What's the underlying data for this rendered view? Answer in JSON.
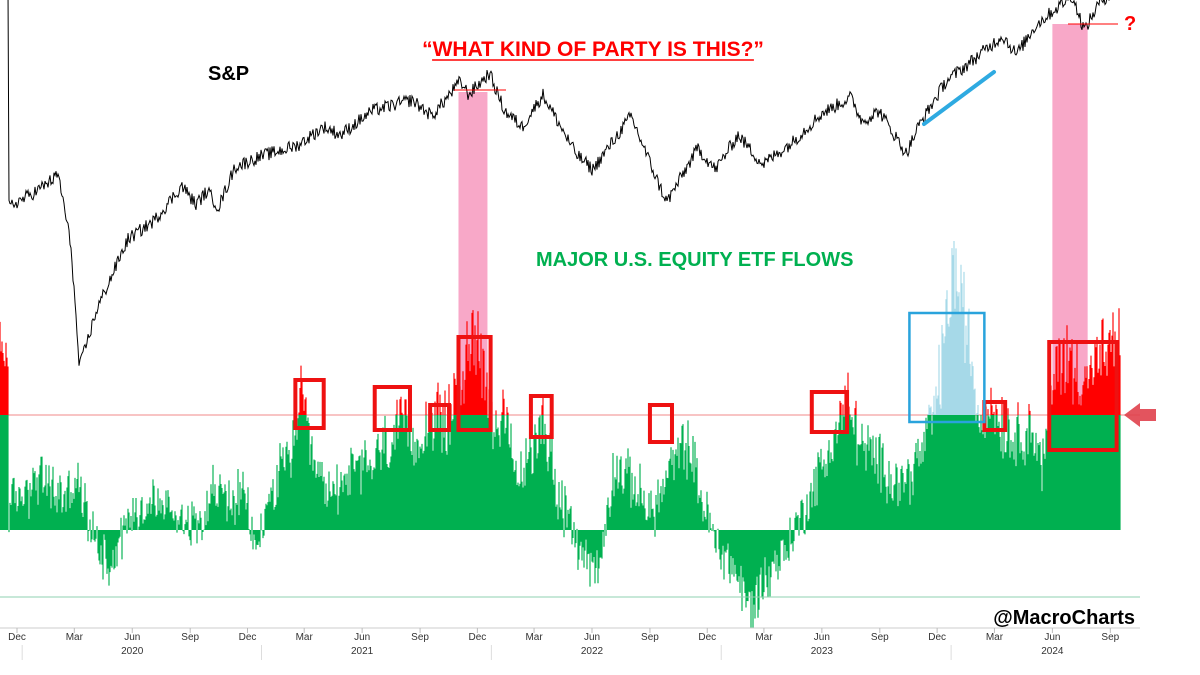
{
  "chart_data": {
    "type": "line",
    "title": "“WHAT KIND OF PARTY IS THIS?”",
    "question_mark": "?",
    "credit": "@MacroCharts",
    "colors": {
      "sp_line": "#000000",
      "flows_fill": "#00b050",
      "flows_above_threshold": "#ff0000",
      "flows_highlight": "#a6d9e8",
      "highlight_box": "#29a3dc",
      "marker_boxes": "#ee1111",
      "pink_bands": "#f8a8c8",
      "threshold_line": "#f4a0a0",
      "trend_line": "#2eaae1"
    },
    "x_axis": {
      "months": [
        {
          "label": "Dec",
          "date": "2019-12"
        },
        {
          "label": "Mar",
          "date": "2020-03"
        },
        {
          "label": "Jun",
          "date": "2020-06"
        },
        {
          "label": "Sep",
          "date": "2020-09"
        },
        {
          "label": "Dec",
          "date": "2020-12"
        },
        {
          "label": "Mar",
          "date": "2021-03"
        },
        {
          "label": "Jun",
          "date": "2021-06"
        },
        {
          "label": "Sep",
          "date": "2021-09"
        },
        {
          "label": "Dec",
          "date": "2021-12"
        },
        {
          "label": "Mar",
          "date": "2022-03"
        },
        {
          "label": "Jun",
          "date": "2022-06"
        },
        {
          "label": "Sep",
          "date": "2022-09"
        },
        {
          "label": "Dec",
          "date": "2022-12"
        },
        {
          "label": "Mar",
          "date": "2023-03"
        },
        {
          "label": "Jun",
          "date": "2023-06"
        },
        {
          "label": "Sep",
          "date": "2023-09"
        },
        {
          "label": "Dec",
          "date": "2023-12"
        },
        {
          "label": "Mar",
          "date": "2024-03"
        },
        {
          "label": "Jun",
          "date": "2024-06"
        },
        {
          "label": "Sep",
          "date": "2024-09"
        }
      ],
      "years": [
        {
          "label": "2020",
          "date": "2020-06"
        },
        {
          "label": "2021",
          "date": "2021-06"
        },
        {
          "label": "2022",
          "date": "2022-06"
        },
        {
          "label": "2023",
          "date": "2023-06"
        },
        {
          "label": "2024",
          "date": "2024-06"
        }
      ]
    },
    "series": [
      {
        "name": "S&P",
        "points": [
          [
            "2019-12-01",
            0.6
          ],
          [
            "2020-01-15",
            0.66
          ],
          [
            "2020-02-19",
            0.72
          ],
          [
            "2020-03-10",
            0.45
          ],
          [
            "2020-03-23",
            0.0
          ],
          [
            "2020-04-20",
            0.22
          ],
          [
            "2020-06-08",
            0.48
          ],
          [
            "2020-07-20",
            0.55
          ],
          [
            "2020-09-02",
            0.68
          ],
          [
            "2020-09-24",
            0.61
          ],
          [
            "2020-10-12",
            0.66
          ],
          [
            "2020-10-30",
            0.6
          ],
          [
            "2020-11-25",
            0.75
          ],
          [
            "2021-01-05",
            0.79
          ],
          [
            "2021-03-04",
            0.83
          ],
          [
            "2021-04-15",
            0.9
          ],
          [
            "2021-05-12",
            0.87
          ],
          [
            "2021-07-01",
            0.96
          ],
          [
            "2021-09-02",
            1.0
          ],
          [
            "2021-10-04",
            0.94
          ],
          [
            "2021-11-18",
            1.07
          ],
          [
            "2021-12-01",
            1.02
          ],
          [
            "2022-01-03",
            1.1
          ],
          [
            "2022-01-27",
            0.96
          ],
          [
            "2022-02-24",
            0.9
          ],
          [
            "2022-03-29",
            1.02
          ],
          [
            "2022-05-20",
            0.8
          ],
          [
            "2022-06-16",
            0.74
          ],
          [
            "2022-08-16",
            0.94
          ],
          [
            "2022-09-30",
            0.68
          ],
          [
            "2022-10-12",
            0.62
          ],
          [
            "2022-11-30",
            0.82
          ],
          [
            "2022-12-28",
            0.74
          ],
          [
            "2023-02-02",
            0.87
          ],
          [
            "2023-03-13",
            0.76
          ],
          [
            "2023-04-28",
            0.84
          ],
          [
            "2023-06-15",
            0.95
          ],
          [
            "2023-07-31",
            1.01
          ],
          [
            "2023-08-18",
            0.92
          ],
          [
            "2023-09-14",
            0.96
          ],
          [
            "2023-10-27",
            0.8
          ],
          [
            "2023-11-15",
            0.9
          ],
          [
            "2023-12-29",
            1.07
          ],
          [
            "2024-01-31",
            1.13
          ],
          [
            "2024-03-28",
            1.24
          ],
          [
            "2024-04-19",
            1.17
          ],
          [
            "2024-05-20",
            1.28
          ],
          [
            "2024-07-16",
            1.39
          ],
          [
            "2024-08-05",
            1.26
          ],
          [
            "2024-08-30",
            1.37
          ],
          [
            "2024-09-20",
            1.4
          ]
        ]
      },
      {
        "name": "MAJOR U.S. EQUITY ETF FLOWS",
        "points": [
          [
            "2019-12-01",
            0.2
          ],
          [
            "2020-01-20",
            0.45
          ],
          [
            "2020-02-25",
            0.28
          ],
          [
            "2020-03-20",
            0.4
          ],
          [
            "2020-04-15",
            -0.05
          ],
          [
            "2020-05-10",
            -0.3
          ],
          [
            "2020-06-10",
            0.12
          ],
          [
            "2020-07-20",
            0.25
          ],
          [
            "2020-08-25",
            0.15
          ],
          [
            "2020-09-25",
            0.05
          ],
          [
            "2020-10-20",
            0.35
          ],
          [
            "2020-11-20",
            0.25
          ],
          [
            "2020-12-10",
            0.3
          ],
          [
            "2020-12-28",
            -0.2
          ],
          [
            "2021-01-20",
            0.3
          ],
          [
            "2021-02-20",
            0.65
          ],
          [
            "2021-03-10",
            1.15
          ],
          [
            "2021-03-28",
            0.55
          ],
          [
            "2021-04-25",
            0.3
          ],
          [
            "2021-05-25",
            0.5
          ],
          [
            "2021-06-25",
            0.55
          ],
          [
            "2021-07-20",
            0.72
          ],
          [
            "2021-08-20",
            0.9
          ],
          [
            "2021-09-10",
            0.75
          ],
          [
            "2021-10-05",
            1.0
          ],
          [
            "2021-10-25",
            0.9
          ],
          [
            "2021-11-20",
            1.3
          ],
          [
            "2021-12-15",
            1.8
          ],
          [
            "2022-01-05",
            1.0
          ],
          [
            "2022-01-28",
            0.9
          ],
          [
            "2022-02-15",
            0.45
          ],
          [
            "2022-03-10",
            0.6
          ],
          [
            "2022-03-28",
            1.05
          ],
          [
            "2022-04-20",
            0.35
          ],
          [
            "2022-05-20",
            -0.1
          ],
          [
            "2022-06-10",
            -0.25
          ],
          [
            "2022-06-25",
            -0.4
          ],
          [
            "2022-07-20",
            0.55
          ],
          [
            "2022-08-20",
            0.4
          ],
          [
            "2022-09-20",
            0.15
          ],
          [
            "2022-10-20",
            0.55
          ],
          [
            "2022-11-15",
            0.75
          ],
          [
            "2022-12-05",
            0.3
          ],
          [
            "2022-12-28",
            -0.1
          ],
          [
            "2023-01-28",
            -0.35
          ],
          [
            "2023-02-20",
            -0.7
          ],
          [
            "2023-03-15",
            -0.45
          ],
          [
            "2023-04-20",
            -0.15
          ],
          [
            "2023-05-20",
            0.2
          ],
          [
            "2023-06-20",
            0.6
          ],
          [
            "2023-07-25",
            1.1
          ],
          [
            "2023-08-20",
            0.7
          ],
          [
            "2023-09-20",
            0.55
          ],
          [
            "2023-10-20",
            0.4
          ],
          [
            "2023-11-20",
            0.65
          ],
          [
            "2023-12-15",
            1.15
          ],
          [
            "2024-01-10",
            2.3
          ],
          [
            "2024-01-30",
            1.8
          ],
          [
            "2024-02-20",
            0.95
          ],
          [
            "2024-03-10",
            1.1
          ],
          [
            "2024-04-10",
            0.8
          ],
          [
            "2024-05-10",
            0.9
          ],
          [
            "2024-06-01",
            0.55
          ],
          [
            "2024-06-25",
            1.55
          ],
          [
            "2024-07-20",
            1.4
          ],
          [
            "2024-08-10",
            1.35
          ],
          [
            "2024-09-01",
            1.5
          ],
          [
            "2024-09-20",
            1.55
          ]
        ]
      }
    ],
    "flows_threshold": 1.0,
    "pink_bands": [
      [
        "2021-11-15",
        "2021-12-31"
      ],
      [
        "2024-06-15",
        "2024-08-10"
      ]
    ],
    "blue_highlight": [
      "2023-11-01",
      "2024-02-28"
    ],
    "red_boxes": [
      [
        "2021-03-01",
        "2021-04-15"
      ],
      [
        "2021-07-05",
        "2021-08-30"
      ],
      [
        "2021-10-01",
        "2021-10-31"
      ],
      [
        "2021-11-15",
        "2022-01-05"
      ],
      [
        "2022-03-10",
        "2022-04-12"
      ],
      [
        "2022-09-15",
        "2022-10-20"
      ],
      [
        "2023-05-30",
        "2023-07-25"
      ],
      [
        "2024-02-28",
        "2024-04-01"
      ],
      [
        "2024-06-10",
        "2024-09-25"
      ]
    ]
  }
}
